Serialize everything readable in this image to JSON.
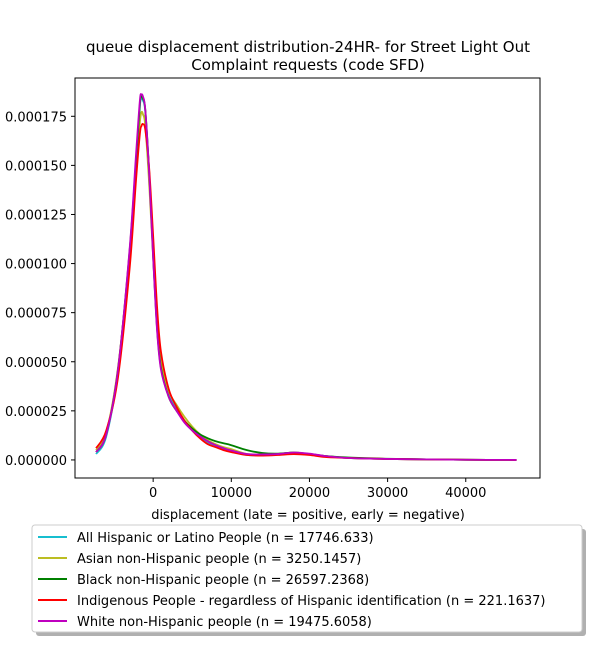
{
  "chart_data": {
    "type": "line",
    "title_lines": [
      "queue displacement distribution-24HR-  for Street Light Out",
      "Complaint  requests (code SFD)"
    ],
    "xlabel": "displacement (late = positive, early = negative)",
    "ylabel": "",
    "xlim": [
      -10000,
      49500
    ],
    "ylim": [
      -9.2e-06,
      0.0001945
    ],
    "x_ticks": [
      0,
      10000,
      20000,
      30000,
      40000
    ],
    "x_tick_labels": [
      "0",
      "10000",
      "20000",
      "30000",
      "40000"
    ],
    "y_ticks": [
      0.0,
      2.5e-05,
      5e-05,
      7.5e-05,
      0.0001,
      0.000125,
      0.00015,
      0.000175
    ],
    "y_tick_labels": [
      "0.000000",
      "0.000025",
      "0.000050",
      "0.000075",
      "0.000100",
      "0.000125",
      "0.000150",
      "0.000175"
    ],
    "grid": false,
    "legend_position": "below",
    "series": [
      {
        "name": "All Hispanic or Latino People (n = 17746.633)",
        "color": "#17becf",
        "x": [
          -7300,
          -6000,
          -4500,
          -3000,
          -2200,
          -1700,
          -1500,
          -1300,
          -1000,
          -500,
          0,
          500,
          1000,
          2000,
          3000,
          4000,
          5000,
          6000,
          7000,
          8000,
          9000,
          10000,
          12000,
          14000,
          16000,
          18000,
          20000,
          22000,
          25000,
          30000,
          35000,
          40000,
          46500
        ],
        "y": [
          3e-06,
          1.2e-05,
          4.5e-05,
          0.000105,
          0.00015,
          0.00018,
          0.000184,
          0.000183,
          0.000177,
          0.000145,
          0.000105,
          6.8e-05,
          4.8e-05,
          3.3e-05,
          2.6e-05,
          2e-05,
          1.5e-05,
          1.2e-05,
          9e-06,
          7e-06,
          5.5e-06,
          4.5e-06,
          2.5e-06,
          2.5e-06,
          2.8e-06,
          3.5e-06,
          3e-06,
          2e-06,
          1e-06,
          5e-07,
          3e-07,
          1e-07,
          0.0
        ]
      },
      {
        "name": "Asian non-Hispanic people (n = 3250.1457)",
        "color": "#bcbd22",
        "x": [
          -7300,
          -6000,
          -4500,
          -3000,
          -2200,
          -1700,
          -1500,
          -1300,
          -1000,
          -500,
          0,
          500,
          1000,
          2000,
          3000,
          4000,
          5000,
          6000,
          7000,
          8000,
          9000,
          10000,
          12000,
          14000,
          16000,
          18000,
          20000,
          22000,
          25000,
          30000,
          35000,
          40000,
          46500
        ],
        "y": [
          5e-06,
          1.4e-05,
          4.7e-05,
          0.000105,
          0.000148,
          0.000172,
          0.000177,
          0.000176,
          0.00017,
          0.00014,
          0.000103,
          7e-05,
          5e-05,
          3.5e-05,
          2.8e-05,
          2.2e-05,
          1.7e-05,
          1.3e-05,
          1e-05,
          8e-06,
          6.5e-06,
          5.5e-06,
          3e-06,
          2.8e-06,
          3e-06,
          3.8e-06,
          3e-06,
          2e-06,
          1e-06,
          5e-07,
          3e-07,
          1e-07,
          0.0
        ]
      },
      {
        "name": "Black non-Hispanic people (n = 26597.2368)",
        "color": "#008000",
        "x": [
          -7300,
          -6000,
          -4500,
          -3000,
          -2200,
          -1700,
          -1500,
          -1300,
          -1000,
          -500,
          0,
          500,
          1000,
          2000,
          3000,
          4000,
          5000,
          6000,
          7000,
          8000,
          9000,
          10000,
          12000,
          14000,
          16000,
          18000,
          20000,
          22000,
          25000,
          30000,
          35000,
          40000,
          46500
        ],
        "y": [
          4e-06,
          1.3e-05,
          4.6e-05,
          0.000107,
          0.000152,
          0.000181,
          0.000185,
          0.000184,
          0.000178,
          0.000146,
          0.000104,
          6.7e-05,
          4.7e-05,
          3.2e-05,
          2.5e-05,
          2e-05,
          1.6e-05,
          1.3e-05,
          1.1e-05,
          9.5e-06,
          8.5e-06,
          7.5e-06,
          5e-06,
          3.5e-06,
          3.2e-06,
          3.8e-06,
          3e-06,
          2e-06,
          1.2e-06,
          6e-07,
          3e-07,
          1e-07,
          0.0
        ]
      },
      {
        "name": "Indigenous People - regardless of Hispanic identification (n = 221.1637)",
        "color": "#ff0000",
        "x": [
          -7300,
          -6000,
          -4500,
          -3000,
          -2200,
          -1700,
          -1500,
          -1300,
          -1000,
          -500,
          0,
          500,
          1000,
          2000,
          3000,
          4000,
          5000,
          6000,
          7000,
          8000,
          9000,
          10000,
          12000,
          14000,
          16000,
          18000,
          20000,
          22000,
          25000,
          30000,
          35000,
          40000,
          46500
        ],
        "y": [
          6e-06,
          1.5e-05,
          4.2e-05,
          9.8e-05,
          0.000142,
          0.000166,
          0.00017,
          0.000171,
          0.000168,
          0.000148,
          0.000114,
          7.8e-05,
          5.5e-05,
          3.6e-05,
          2.7e-05,
          2e-05,
          1.5e-05,
          1.1e-05,
          8e-06,
          6.5e-06,
          5e-06,
          4e-06,
          2.5e-06,
          2.2e-06,
          2.5e-06,
          3e-06,
          2.5e-06,
          1.5e-06,
          1e-06,
          5e-07,
          3e-07,
          1e-07,
          0.0
        ]
      },
      {
        "name": "White non-Hispanic people (n = 19475.6058)",
        "color": "#bf00bf",
        "x": [
          -7300,
          -6000,
          -4500,
          -3000,
          -2200,
          -1700,
          -1500,
          -1300,
          -1000,
          -500,
          0,
          500,
          1000,
          2000,
          3000,
          4000,
          5000,
          6000,
          7000,
          8000,
          9000,
          10000,
          12000,
          14000,
          16000,
          18000,
          20000,
          22000,
          25000,
          30000,
          35000,
          40000,
          46500
        ],
        "y": [
          4e-06,
          1.3e-05,
          4.6e-05,
          0.000108,
          0.000155,
          0.000183,
          0.000186,
          0.000185,
          0.000178,
          0.000145,
          0.000103,
          6.6e-05,
          4.6e-05,
          3.2e-05,
          2.5e-05,
          1.9e-05,
          1.5e-05,
          1.2e-05,
          9.5e-06,
          7.5e-06,
          6e-06,
          4.8e-06,
          3e-06,
          2.8e-06,
          3e-06,
          3.8e-06,
          3.2e-06,
          2e-06,
          1e-06,
          5e-07,
          3e-07,
          1e-07,
          0.0
        ]
      }
    ]
  }
}
